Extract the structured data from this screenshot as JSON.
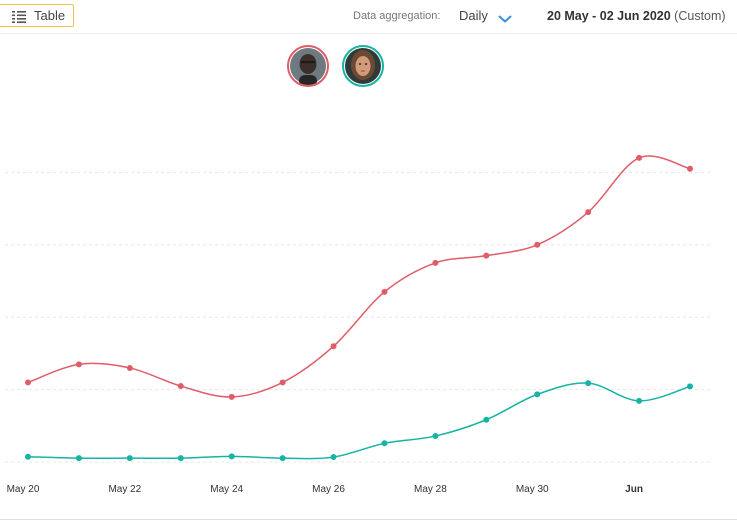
{
  "toolbar": {
    "table_label": "Table",
    "aggregation_label": "Data aggregation:",
    "aggregation_value": "Daily",
    "date_range": "20 May - 02 Jun 2020",
    "date_range_suffix": "(Custom)"
  },
  "avatars": [
    {
      "name": "person-1-avatar",
      "color": "#e05c67"
    },
    {
      "name": "person-2-avatar",
      "color": "#17b3a3"
    }
  ],
  "colors": {
    "series_red": "#e05c67",
    "series_teal": "#17b3a3",
    "grid": "#e6e6e6",
    "accent_blue": "#3a8fd8",
    "table_border": "#f2c14e"
  },
  "chart_data": {
    "type": "line",
    "x": [
      "2020-05-20",
      "2020-05-21",
      "2020-05-22",
      "2020-05-23",
      "2020-05-24",
      "2020-05-25",
      "2020-05-26",
      "2020-05-27",
      "2020-05-28",
      "2020-05-29",
      "2020-05-30",
      "2020-05-31",
      "2020-06-01",
      "2020-06-02"
    ],
    "x_tick_labels": [
      "May 20",
      "May 22",
      "May 24",
      "May 26",
      "May 28",
      "May 30",
      "Jun"
    ],
    "series": [
      {
        "color": "#e05c67",
        "values": [
          22,
          27,
          26,
          21,
          18,
          22,
          32,
          47,
          55,
          57,
          60,
          69,
          84,
          81
        ]
      },
      {
        "color": "#17b3a3",
        "values": [
          1.5,
          1.1,
          1.1,
          1.1,
          1.6,
          1.1,
          1.4,
          5.2,
          7.2,
          11.7,
          18.7,
          21.8,
          16.9,
          20.9
        ]
      }
    ],
    "ylim": [
      -3,
      95
    ],
    "grid": true
  }
}
